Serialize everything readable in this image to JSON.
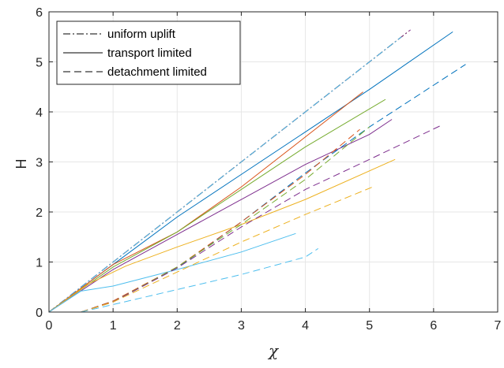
{
  "chart_data": {
    "type": "line",
    "xlabel": "χ",
    "ylabel": "H",
    "xlim": [
      0,
      7
    ],
    "ylim": [
      0,
      6
    ],
    "xticks": [
      0,
      1,
      2,
      3,
      4,
      5,
      6,
      7
    ],
    "yticks": [
      0,
      1,
      2,
      3,
      4,
      5,
      6
    ],
    "grid": true,
    "legend_position": "top-left",
    "legend": [
      {
        "label": "uniform uplift",
        "style": "dashdot"
      },
      {
        "label": "transport limited",
        "style": "solid"
      },
      {
        "label": "detachment limited",
        "style": "dashed"
      }
    ],
    "colors": {
      "blue": "#0072BD",
      "orange": "#D95319",
      "yellow": "#EDB120",
      "purple": "#7E2F8E",
      "green": "#77AC30",
      "cyan": "#4DBEEE",
      "legend_line": "#000000",
      "grid": "#e6e6e6",
      "axes": "#262626"
    },
    "series": [
      {
        "style": "dashdot",
        "color": "#EDB120",
        "points": [
          [
            0,
            0
          ],
          [
            5.55,
            5.55
          ]
        ]
      },
      {
        "style": "dashdot",
        "color": "#77AC30",
        "points": [
          [
            0,
            0
          ],
          [
            5.58,
            5.58
          ]
        ]
      },
      {
        "style": "dashdot",
        "color": "#0072BD",
        "points": [
          [
            0,
            0
          ],
          [
            5.6,
            5.6
          ]
        ]
      },
      {
        "style": "dashdot",
        "color": "#D95319",
        "points": [
          [
            0,
            0
          ],
          [
            5.62,
            5.62
          ]
        ]
      },
      {
        "style": "dashdot",
        "color": "#7E2F8E",
        "points": [
          [
            0,
            0
          ],
          [
            5.64,
            5.64
          ]
        ]
      },
      {
        "style": "dashdot",
        "color": "#4DBEEE",
        "points": [
          [
            0,
            0
          ],
          [
            5.5,
            5.5
          ]
        ]
      },
      {
        "style": "solid",
        "color": "#0072BD",
        "points": [
          [
            0,
            0
          ],
          [
            1,
            0.95
          ],
          [
            2,
            1.9
          ],
          [
            3,
            2.75
          ],
          [
            4,
            3.6
          ],
          [
            5,
            4.45
          ],
          [
            6.3,
            5.6
          ]
        ]
      },
      {
        "style": "solid",
        "color": "#D95319",
        "points": [
          [
            0,
            0
          ],
          [
            1,
            0.95
          ],
          [
            2,
            1.6
          ],
          [
            3,
            2.5
          ],
          [
            4,
            3.5
          ],
          [
            4.9,
            4.4
          ]
        ]
      },
      {
        "style": "solid",
        "color": "#77AC30",
        "points": [
          [
            0,
            0
          ],
          [
            1,
            0.9
          ],
          [
            2,
            1.6
          ],
          [
            3,
            2.45
          ],
          [
            4,
            3.3
          ],
          [
            5.25,
            4.25
          ]
        ]
      },
      {
        "style": "solid",
        "color": "#7E2F8E",
        "points": [
          [
            0,
            0
          ],
          [
            1,
            0.85
          ],
          [
            2,
            1.55
          ],
          [
            3,
            2.25
          ],
          [
            4,
            2.95
          ],
          [
            5,
            3.55
          ],
          [
            5.35,
            3.85
          ]
        ]
      },
      {
        "style": "solid",
        "color": "#EDB120",
        "points": [
          [
            0,
            0
          ],
          [
            0.6,
            0.55
          ],
          [
            1.2,
            0.92
          ],
          [
            2,
            1.3
          ],
          [
            3,
            1.75
          ],
          [
            4,
            2.25
          ],
          [
            5.4,
            3.05
          ]
        ]
      },
      {
        "style": "solid",
        "color": "#4DBEEE",
        "points": [
          [
            0,
            0
          ],
          [
            0.5,
            0.42
          ],
          [
            1,
            0.52
          ],
          [
            2,
            0.85
          ],
          [
            3,
            1.2
          ],
          [
            3.85,
            1.57
          ]
        ]
      },
      {
        "style": "dashed",
        "color": "#0072BD",
        "points": [
          [
            0.5,
            0
          ],
          [
            1,
            0.22
          ],
          [
            2,
            0.88
          ],
          [
            3,
            1.8
          ],
          [
            4,
            2.78
          ],
          [
            5,
            3.7
          ],
          [
            6.5,
            4.95
          ]
        ]
      },
      {
        "style": "dashed",
        "color": "#D95319",
        "points": [
          [
            0.5,
            0
          ],
          [
            1,
            0.22
          ],
          [
            2,
            0.9
          ],
          [
            3,
            1.8
          ],
          [
            4,
            2.75
          ],
          [
            4.85,
            3.65
          ]
        ]
      },
      {
        "style": "dashed",
        "color": "#77AC30",
        "points": [
          [
            0.5,
            0
          ],
          [
            1,
            0.2
          ],
          [
            2,
            0.9
          ],
          [
            3,
            1.75
          ],
          [
            4,
            2.65
          ],
          [
            5,
            3.7
          ]
        ]
      },
      {
        "style": "dashed",
        "color": "#7E2F8E",
        "points": [
          [
            0.5,
            0
          ],
          [
            1,
            0.2
          ],
          [
            2,
            0.88
          ],
          [
            3,
            1.7
          ],
          [
            4,
            2.45
          ],
          [
            5,
            3.05
          ],
          [
            6.15,
            3.75
          ]
        ]
      },
      {
        "style": "dashed",
        "color": "#EDB120",
        "points": [
          [
            0.5,
            0
          ],
          [
            1,
            0.2
          ],
          [
            2,
            0.8
          ],
          [
            3,
            1.4
          ],
          [
            4,
            1.95
          ],
          [
            5.05,
            2.5
          ]
        ]
      },
      {
        "style": "dashed",
        "color": "#4DBEEE",
        "points": [
          [
            0.5,
            0
          ],
          [
            1,
            0.15
          ],
          [
            2,
            0.45
          ],
          [
            3,
            0.75
          ],
          [
            4,
            1.1
          ],
          [
            4.2,
            1.27
          ]
        ]
      }
    ]
  }
}
